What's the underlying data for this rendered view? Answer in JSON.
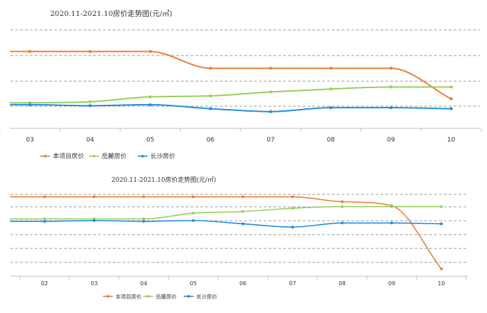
{
  "chart_data": [
    {
      "type": "line",
      "title": "2020.11-2021.10房价走势图(元/㎡)",
      "categories": [
        "03",
        "04",
        "05",
        "06",
        "07",
        "08",
        "09",
        "10"
      ],
      "ylim": [
        0,
        10
      ],
      "grid": true,
      "legend": "bottom-left",
      "series": [
        {
          "name": "本项目房价",
          "color": "#ee7d31",
          "values": [
            7.8,
            7.8,
            7.8,
            6.1,
            6.1,
            6.1,
            6.1,
            3.0
          ]
        },
        {
          "name": "岳麓房价",
          "color": "#9acd5b",
          "values": [
            2.6,
            2.7,
            3.2,
            3.3,
            3.7,
            4.0,
            4.2,
            4.2
          ]
        },
        {
          "name": "长沙房价",
          "color": "#1d8ce0",
          "values": [
            2.4,
            2.3,
            2.4,
            2.0,
            1.7,
            2.1,
            2.1,
            2.0
          ]
        }
      ]
    },
    {
      "type": "line",
      "title": "2020.11-2021.10房价走势图(元/㎡)",
      "categories": [
        "02",
        "03",
        "04",
        "05",
        "06",
        "07",
        "08",
        "09",
        "10"
      ],
      "ylim": [
        0,
        10
      ],
      "grid": true,
      "legend": "bottom-center",
      "series": [
        {
          "name": "本项目房价",
          "color": "#ee7d31",
          "values": [
            9.7,
            9.7,
            9.7,
            9.7,
            9.7,
            9.7,
            9.1,
            8.6,
            0.9
          ]
        },
        {
          "name": "岳麓房价",
          "color": "#9acd5b",
          "values": [
            7.0,
            7.0,
            7.0,
            7.7,
            7.9,
            8.3,
            8.5,
            8.5,
            8.5
          ]
        },
        {
          "name": "长沙房价",
          "color": "#1d8ce0",
          "values": [
            6.7,
            6.8,
            6.7,
            6.8,
            6.4,
            6.0,
            6.5,
            6.5,
            6.4
          ]
        }
      ]
    }
  ]
}
